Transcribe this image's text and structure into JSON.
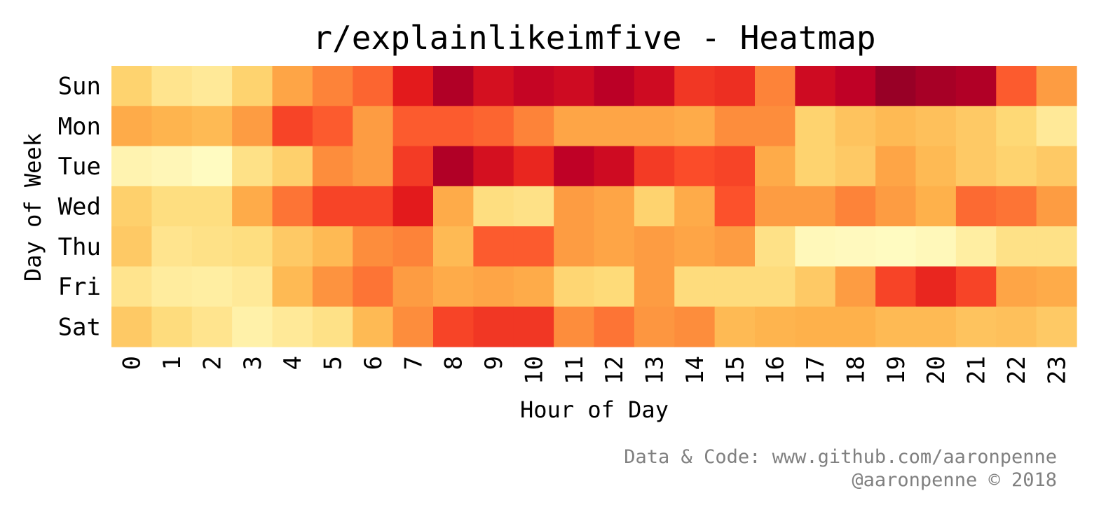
{
  "chart_data": {
    "type": "heatmap",
    "title": "r/explainlikeimfive - Heatmap",
    "xlabel": "Hour of Day",
    "ylabel": "Day of Week",
    "x": [
      "0",
      "1",
      "2",
      "3",
      "4",
      "5",
      "6",
      "7",
      "8",
      "9",
      "10",
      "11",
      "12",
      "13",
      "14",
      "15",
      "16",
      "17",
      "18",
      "19",
      "20",
      "21",
      "22",
      "23"
    ],
    "y": [
      "Sun",
      "Mon",
      "Tue",
      "Wed",
      "Thu",
      "Fri",
      "Sat"
    ],
    "colormap": "YlOrRd",
    "color_range": [
      0,
      1
    ],
    "values": [
      [
        0.27,
        0.18,
        0.15,
        0.27,
        0.42,
        0.52,
        0.58,
        0.75,
        0.9,
        0.8,
        0.85,
        0.82,
        0.88,
        0.82,
        0.68,
        0.7,
        0.52,
        0.82,
        0.87,
        0.95,
        0.92,
        0.9,
        0.6,
        0.45
      ],
      [
        0.4,
        0.37,
        0.35,
        0.45,
        0.65,
        0.6,
        0.45,
        0.6,
        0.6,
        0.58,
        0.52,
        0.42,
        0.42,
        0.42,
        0.4,
        0.5,
        0.5,
        0.27,
        0.32,
        0.35,
        0.33,
        0.3,
        0.25,
        0.15
      ],
      [
        0.08,
        0.06,
        0.03,
        0.2,
        0.28,
        0.5,
        0.45,
        0.67,
        0.9,
        0.8,
        0.72,
        0.87,
        0.82,
        0.67,
        0.63,
        0.65,
        0.4,
        0.27,
        0.3,
        0.42,
        0.35,
        0.3,
        0.27,
        0.3
      ],
      [
        0.28,
        0.22,
        0.22,
        0.4,
        0.55,
        0.65,
        0.65,
        0.75,
        0.4,
        0.22,
        0.2,
        0.45,
        0.42,
        0.27,
        0.4,
        0.62,
        0.45,
        0.45,
        0.52,
        0.45,
        0.38,
        0.57,
        0.55,
        0.45
      ],
      [
        0.3,
        0.18,
        0.2,
        0.22,
        0.3,
        0.35,
        0.5,
        0.52,
        0.35,
        0.6,
        0.6,
        0.45,
        0.42,
        0.45,
        0.42,
        0.45,
        0.2,
        0.05,
        0.04,
        0.03,
        0.05,
        0.12,
        0.2,
        0.2
      ],
      [
        0.18,
        0.13,
        0.12,
        0.15,
        0.35,
        0.48,
        0.55,
        0.45,
        0.4,
        0.42,
        0.4,
        0.26,
        0.24,
        0.45,
        0.23,
        0.23,
        0.23,
        0.3,
        0.45,
        0.65,
        0.72,
        0.65,
        0.42,
        0.4
      ],
      [
        0.3,
        0.23,
        0.18,
        0.1,
        0.15,
        0.2,
        0.35,
        0.5,
        0.65,
        0.68,
        0.68,
        0.5,
        0.55,
        0.47,
        0.5,
        0.35,
        0.37,
        0.38,
        0.38,
        0.35,
        0.35,
        0.32,
        0.33,
        0.3
      ]
    ]
  },
  "footer": {
    "line1": "Data & Code: www.github.com/aaronpenne",
    "line2": "@aaronpenne © 2018"
  }
}
